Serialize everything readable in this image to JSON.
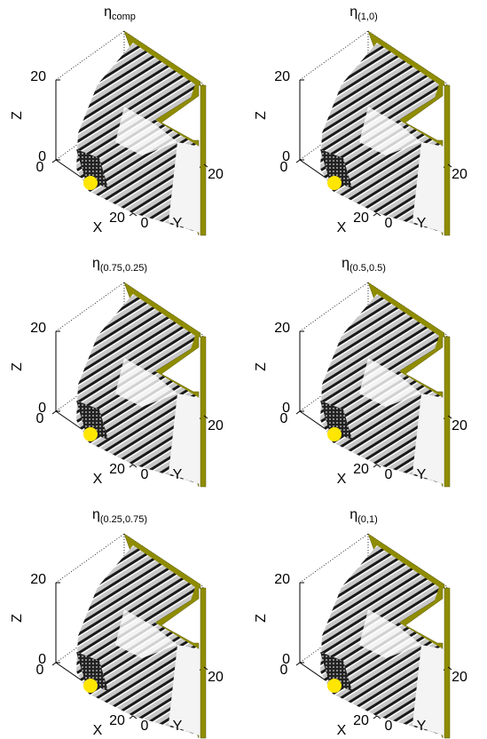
{
  "chart_data": [
    {
      "type": "voxel3d",
      "title": "η",
      "title_subscript": "comp",
      "xlabel": "X",
      "ylabel": "Y",
      "zlabel": "Z",
      "xlim": [
        0,
        20
      ],
      "ylim": [
        0,
        20
      ],
      "zlim": [
        0,
        20
      ],
      "xticks": [
        0,
        20
      ],
      "yticks": [
        0,
        20
      ],
      "zticks": [
        0,
        20
      ]
    },
    {
      "type": "voxel3d",
      "title": "η",
      "title_subscript": "(1,0)",
      "xlabel": "X",
      "ylabel": "Y",
      "zlabel": "Z",
      "xlim": [
        0,
        20
      ],
      "ylim": [
        0,
        20
      ],
      "zlim": [
        0,
        20
      ],
      "xticks": [
        0,
        20
      ],
      "yticks": [
        0,
        20
      ],
      "zticks": [
        0,
        20
      ]
    },
    {
      "type": "voxel3d",
      "title": "η",
      "title_subscript": "(0.75,0.25)",
      "xlabel": "X",
      "ylabel": "Y",
      "zlabel": "Z",
      "xlim": [
        0,
        20
      ],
      "ylim": [
        0,
        20
      ],
      "zlim": [
        0,
        20
      ],
      "xticks": [
        0,
        20
      ],
      "yticks": [
        0,
        20
      ],
      "zticks": [
        0,
        20
      ]
    },
    {
      "type": "voxel3d",
      "title": "η",
      "title_subscript": "(0.5,0.5)",
      "xlabel": "X",
      "ylabel": "Y",
      "zlabel": "Z",
      "xlim": [
        0,
        20
      ],
      "ylim": [
        0,
        20
      ],
      "zlim": [
        0,
        20
      ],
      "xticks": [
        0,
        20
      ],
      "yticks": [
        0,
        20
      ],
      "zticks": [
        0,
        20
      ]
    },
    {
      "type": "voxel3d",
      "title": "η",
      "title_subscript": "(0.25,0.75)",
      "xlabel": "X",
      "ylabel": "Y",
      "zlabel": "Z",
      "xlim": [
        0,
        20
      ],
      "ylim": [
        0,
        20
      ],
      "zlim": [
        0,
        20
      ],
      "xticks": [
        0,
        20
      ],
      "yticks": [
        0,
        20
      ],
      "zticks": [
        0,
        20
      ]
    },
    {
      "type": "voxel3d",
      "title": "η",
      "title_subscript": "(0,1)",
      "xlabel": "X",
      "ylabel": "Y",
      "zlabel": "Z",
      "xlim": [
        0,
        20
      ],
      "ylim": [
        0,
        20
      ],
      "zlim": [
        0,
        20
      ],
      "xticks": [
        0,
        20
      ],
      "yticks": [
        0,
        20
      ],
      "zticks": [
        0,
        20
      ]
    }
  ]
}
